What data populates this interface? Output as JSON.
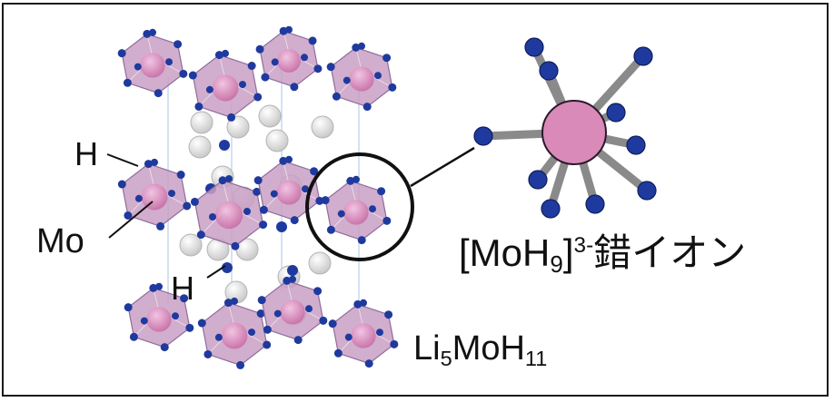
{
  "labels": {
    "h_top": "H",
    "mo": "Mo",
    "h_bottom": "H",
    "formula_li": "Li",
    "formula_li_sub": "5",
    "formula_mo_h": "MoH",
    "formula_h_sub": "11",
    "ion_open": "[MoH",
    "ion_sub": "9",
    "ion_close": "]",
    "ion_charge": "3-",
    "ion_name": "錯イオン"
  },
  "colors": {
    "octahedron": "#c9a0c4",
    "molybdenum": "#d98ab9",
    "hydrogen": "#1f3a9e",
    "lithium": "#e8e8e8",
    "bond": "#8a8a8a"
  }
}
